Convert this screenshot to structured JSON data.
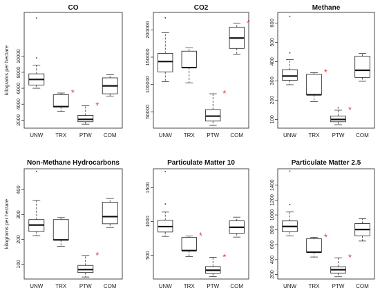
{
  "figure": {
    "ylabel": "kilograms per hectare",
    "significance_marker": "*",
    "marker_color": "#e8393f"
  },
  "chart_data": [
    {
      "type": "box",
      "title": "CO",
      "ylabel": "kilograms per hectare",
      "categories": [
        "UNW",
        "TRX",
        "PTW",
        "COM"
      ],
      "yticks": [
        2000,
        4000,
        6000,
        8000,
        10000
      ],
      "ylim": [
        1000,
        15500
      ],
      "boxes": [
        {
          "name": "UNW",
          "whisker_low": 6000,
          "q1": 6400,
          "median": 7100,
          "q3": 7800,
          "whisker_high": 8900,
          "outliers": [
            9800,
            14800
          ],
          "significant": false
        },
        {
          "name": "TRX",
          "whisker_low": 3100,
          "q1": 3700,
          "median": 3700,
          "q3": 5200,
          "whisker_high": 5400,
          "outliers": [],
          "significant": true
        },
        {
          "name": "PTW",
          "whisker_low": 1500,
          "q1": 1800,
          "median": 2100,
          "q3": 2600,
          "whisker_high": 3800,
          "outliers": [],
          "significant": true
        },
        {
          "name": "COM",
          "whisker_low": 5000,
          "q1": 5300,
          "median": 6300,
          "q3": 7300,
          "whisker_high": 7700,
          "outliers": [],
          "significant": false
        }
      ]
    },
    {
      "type": "box",
      "title": "CO2",
      "categories": [
        "UNW",
        "TRX",
        "PTW",
        "COM"
      ],
      "yticks": [
        50000,
        100000,
        150000,
        200000
      ],
      "ylim": [
        20000,
        232000
      ],
      "boxes": [
        {
          "name": "UNW",
          "whisker_low": 105000,
          "q1": 123000,
          "median": 142000,
          "q3": 157000,
          "whisker_high": 195000,
          "outliers": [
            222000
          ],
          "significant": false
        },
        {
          "name": "TRX",
          "whisker_low": 103000,
          "q1": 131000,
          "median": 131000,
          "q3": 161000,
          "whisker_high": 167000,
          "outliers": [],
          "significant": false
        },
        {
          "name": "PTW",
          "whisker_low": 25000,
          "q1": 33000,
          "median": 42000,
          "q3": 54000,
          "whisker_high": 83000,
          "outliers": [],
          "significant": true
        },
        {
          "name": "COM",
          "whisker_low": 155000,
          "q1": 166000,
          "median": 185000,
          "q3": 205000,
          "whisker_high": 212000,
          "outliers": [],
          "significant": true
        }
      ]
    },
    {
      "type": "box",
      "title": "Methane",
      "categories": [
        "UNW",
        "TRX",
        "PTW",
        "COM"
      ],
      "yticks": [
        100,
        200,
        300,
        400,
        500,
        600
      ],
      "ylim": [
        55,
        655
      ],
      "boxes": [
        {
          "name": "UNW",
          "whisker_low": 280,
          "q1": 303,
          "median": 325,
          "q3": 358,
          "whisker_high": 410,
          "outliers": [
            445,
            635
          ],
          "significant": false
        },
        {
          "name": "TRX",
          "whisker_low": 193,
          "q1": 228,
          "median": 228,
          "q3": 334,
          "whisker_high": 342,
          "outliers": [],
          "significant": true
        },
        {
          "name": "PTW",
          "whisker_low": 73,
          "q1": 88,
          "median": 100,
          "q3": 118,
          "whisker_high": 148,
          "outliers": [
            160
          ],
          "significant": true
        },
        {
          "name": "COM",
          "whisker_low": 298,
          "q1": 318,
          "median": 355,
          "q3": 428,
          "whisker_high": 442,
          "outliers": [],
          "significant": false
        }
      ]
    },
    {
      "type": "box",
      "title": "Non-Methane Hydrocarbons",
      "ylabel": "kilograms per hectare",
      "categories": [
        "UNW",
        "TRX",
        "PTW",
        "COM"
      ],
      "yticks": [
        100,
        200,
        300,
        400
      ],
      "ylim": [
        40,
        485
      ],
      "boxes": [
        {
          "name": "UNW",
          "whisker_low": 215,
          "q1": 232,
          "median": 258,
          "q3": 280,
          "whisker_high": 357,
          "outliers": [
            475
          ],
          "significant": false
        },
        {
          "name": "TRX",
          "whisker_low": 172,
          "q1": 198,
          "median": 198,
          "q3": 280,
          "whisker_high": 288,
          "outliers": [],
          "significant": false
        },
        {
          "name": "PTW",
          "whisker_low": 48,
          "q1": 66,
          "median": 78,
          "q3": 95,
          "whisker_high": 135,
          "outliers": [],
          "significant": true
        },
        {
          "name": "COM",
          "whisker_low": 248,
          "q1": 263,
          "median": 292,
          "q3": 350,
          "whisker_high": 365,
          "outliers": [],
          "significant": false
        }
      ]
    },
    {
      "type": "box",
      "title": "Particulate Matter 10",
      "categories": [
        "UNW",
        "TRX",
        "PTW",
        "COM"
      ],
      "yticks": [
        500,
        1000,
        1500
      ],
      "ylim": [
        150,
        1780
      ],
      "boxes": [
        {
          "name": "UNW",
          "whisker_low": 780,
          "q1": 845,
          "median": 925,
          "q3": 1020,
          "whisker_high": 1140,
          "outliers": [
            1260,
            1740
          ],
          "significant": false
        },
        {
          "name": "TRX",
          "whisker_low": 480,
          "q1": 570,
          "median": 570,
          "q3": 765,
          "whisker_high": 785,
          "outliers": [],
          "significant": true
        },
        {
          "name": "PTW",
          "whisker_low": 185,
          "q1": 235,
          "median": 280,
          "q3": 335,
          "whisker_high": 470,
          "outliers": [],
          "significant": true
        },
        {
          "name": "COM",
          "whisker_low": 770,
          "q1": 825,
          "median": 915,
          "q3": 1010,
          "whisker_high": 1065,
          "outliers": [],
          "significant": false
        }
      ]
    },
    {
      "type": "box",
      "title": "Particulate Matter 2.5",
      "categories": [
        "UNW",
        "TRX",
        "PTW",
        "COM"
      ],
      "yticks": [
        200,
        400,
        600,
        800,
        1000,
        1200,
        1400
      ],
      "ylim": [
        140,
        1620
      ],
      "boxes": [
        {
          "name": "UNW",
          "whisker_low": 720,
          "q1": 775,
          "median": 845,
          "q3": 920,
          "whisker_high": 1040,
          "outliers": [
            1140,
            1590
          ],
          "significant": false
        },
        {
          "name": "TRX",
          "whisker_low": 435,
          "q1": 500,
          "median": 500,
          "q3": 680,
          "whisker_high": 700,
          "outliers": [],
          "significant": true
        },
        {
          "name": "PTW",
          "whisker_low": 170,
          "q1": 220,
          "median": 265,
          "q3": 305,
          "whisker_high": 425,
          "outliers": [],
          "significant": true
        },
        {
          "name": "COM",
          "whisker_low": 650,
          "q1": 720,
          "median": 805,
          "q3": 885,
          "whisker_high": 950,
          "outliers": [],
          "significant": false
        }
      ]
    }
  ]
}
